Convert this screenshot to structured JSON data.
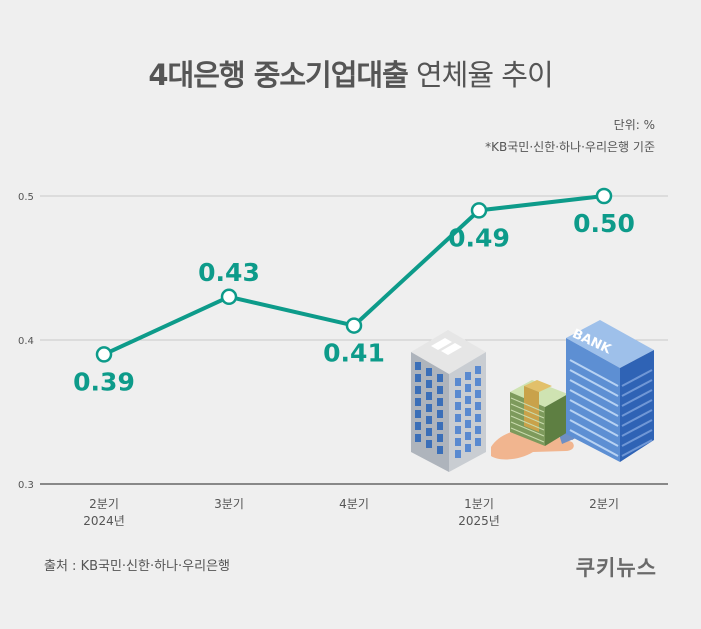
{
  "title": {
    "bold": "4대은행 중소기업대출",
    "light": " 연체율 추이"
  },
  "unit_note": "단위: %",
  "basis_note": "*KB국민·신한·하나·우리은행 기준",
  "source": "출처 : KB국민·신한·하나·우리은행",
  "brand": "쿠키뉴스",
  "colors": {
    "line": "#0d9b8a",
    "label": "#0d9b8a",
    "grid": "#c8c8c8",
    "axis": "#666666",
    "text": "#555555"
  },
  "illustration": {
    "building_sign": "BANK"
  },
  "chart_data": {
    "type": "line",
    "title": "4대은행 중소기업대출 연체율 추이",
    "categories": [
      "2분기|2024년",
      "3분기",
      "4분기",
      "1분기|2025년",
      "2분기"
    ],
    "series": [
      {
        "values": [
          0.39,
          0.43,
          0.41,
          0.49,
          0.5
        ]
      }
    ],
    "data_labels": [
      "0.39",
      "0.43",
      "0.41",
      "0.49",
      "0.50"
    ],
    "yticks": [
      "0.5",
      "0.4",
      "0.3"
    ],
    "ylim": [
      0.3,
      0.5
    ],
    "grid": true,
    "xlabel": "",
    "ylabel": ""
  }
}
